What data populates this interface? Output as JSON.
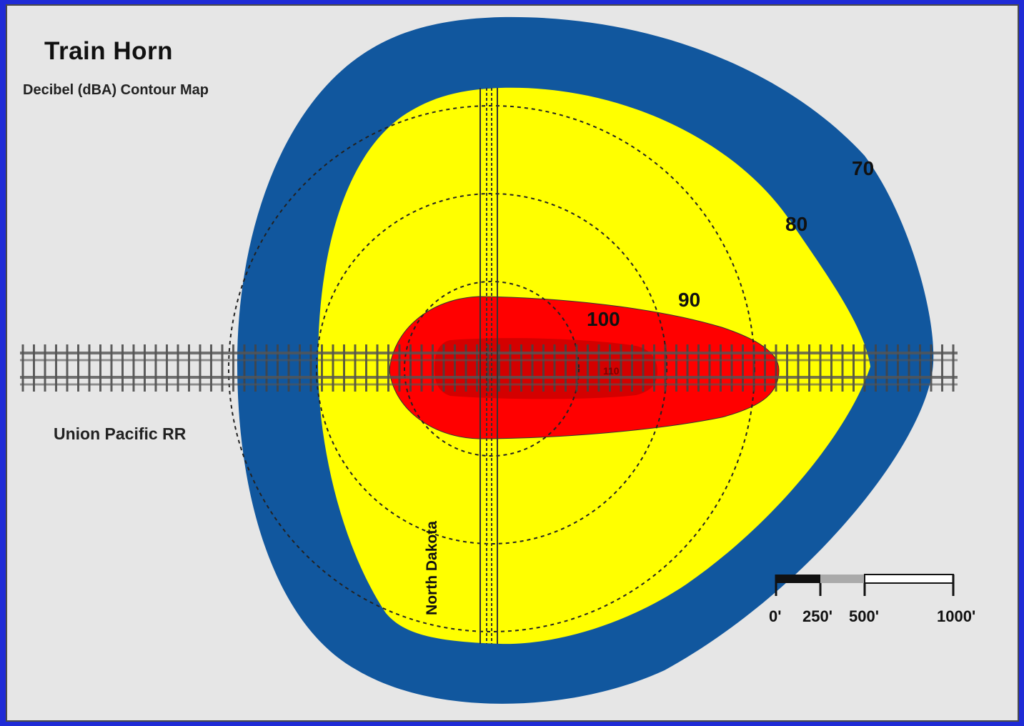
{
  "title": "Train Horn",
  "subtitle": "Decibel (dBA) Contour Map",
  "railroad_label": "Union Pacific RR",
  "street_label": "North Dakota",
  "contours": {
    "c70": "70",
    "c80": "80",
    "c90": "90",
    "c100": "100",
    "c110": "110"
  },
  "scale_bar": {
    "ticks": [
      "0'",
      "250'",
      "500'",
      "1000'"
    ]
  },
  "colors": {
    "band_70": "#11579e",
    "band_80": "#ffff00",
    "band_100": "#ff0000",
    "band_110": "#b00000",
    "background": "#e6e6e6",
    "frame": "#1f2bd6"
  }
}
